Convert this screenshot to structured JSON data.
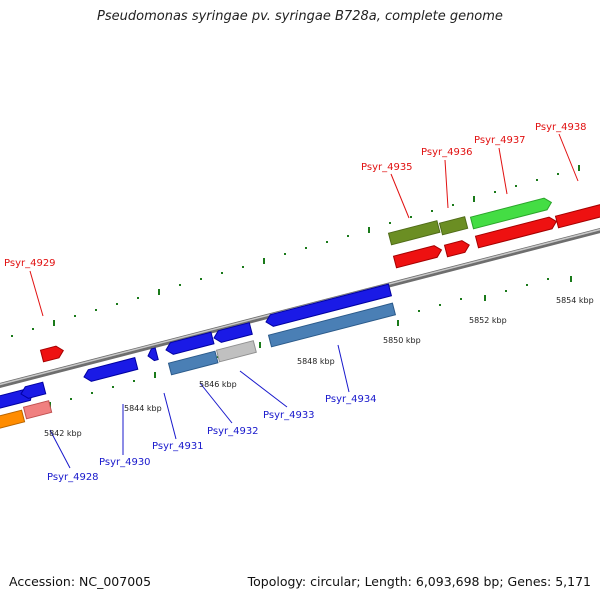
{
  "title": "Pseudomonas syringae pv. syringae B728a, complete genome",
  "footer": {
    "accession": "Accession: NC_007005",
    "topology": "Topology: circular",
    "length": "Length: 6,093,698 bp",
    "genes": "Genes: 5,171"
  },
  "kbp_labels": [
    "5842 kbp",
    "5844 kbp",
    "5846 kbp",
    "5848 kbp",
    "5850 kbp",
    "5852 kbp",
    "5854 kbp"
  ],
  "genes_forward": [
    "Psyr_4935",
    "Psyr_4936",
    "Psyr_4937",
    "Psyr_4938",
    "Psyr_4929"
  ],
  "genes_reverse": [
    "Psyr_4928",
    "Psyr_4930",
    "Psyr_4931",
    "Psyr_4932",
    "Psyr_4933",
    "Psyr_4934"
  ],
  "colors": {
    "forward_label": "#e11111",
    "reverse_label": "#1818cc",
    "tick": "#1a7a1a",
    "backbone": "#888888",
    "cds_blue": "#1a1ae6",
    "cds_steel": "#4a7fb5",
    "cds_red": "#ee1111",
    "cds_green": "#44dd44",
    "cds_olive": "#6b8e23",
    "cds_orange": "#ff8c00",
    "cds_pink": "#f08080",
    "cds_grey": "#c0c0c0"
  }
}
